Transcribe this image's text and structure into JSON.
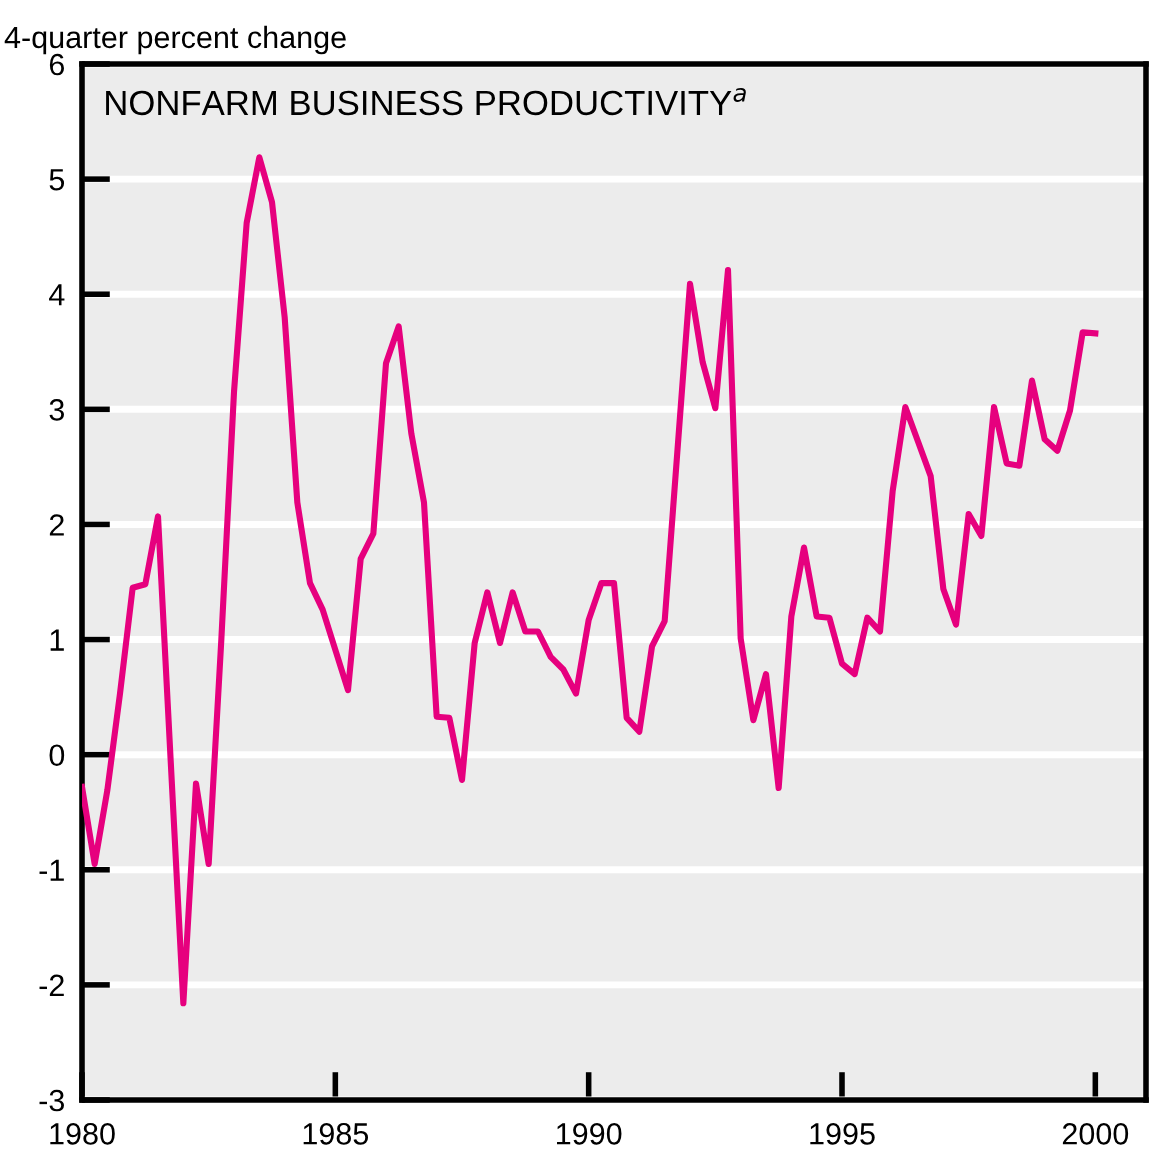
{
  "chart_data": {
    "type": "line",
    "title": "NONFARM BUSINESS PRODUCTIVITY$^{a}$",
    "ylabel": "4-quarter percent change",
    "x": [
      1980,
      1980.25,
      1980.5,
      1980.75,
      1981,
      1981.25,
      1981.5,
      1981.75,
      1982,
      1982.25,
      1982.5,
      1982.75,
      1983,
      1983.25,
      1983.5,
      1983.75,
      1984,
      1984.25,
      1984.5,
      1984.75,
      1985,
      1985.25,
      1985.5,
      1985.75,
      1986,
      1986.25,
      1986.5,
      1986.75,
      1987,
      1987.25,
      1987.5,
      1987.75,
      1988,
      1988.25,
      1988.5,
      1988.75,
      1989,
      1989.25,
      1989.5,
      1989.75,
      1990,
      1990.25,
      1990.5,
      1990.75,
      1991,
      1991.25,
      1991.5,
      1991.75,
      1992,
      1992.25,
      1992.5,
      1992.75,
      1993,
      1993.25,
      1993.5,
      1993.75,
      1994,
      1994.25,
      1994.5,
      1994.75,
      1995,
      1995.25,
      1995.5,
      1995.75,
      1996,
      1996.25,
      1996.5,
      1996.75,
      1997,
      1997.25,
      1997.5,
      1997.75,
      1998,
      1998.25,
      1998.5,
      1998.75,
      1999,
      1999.25,
      1999.5,
      1999.75,
      2000
    ],
    "series": [
      {
        "color": "#e6007e",
        "values": [
          -0.28,
          -0.95,
          -0.31,
          0.53,
          1.45,
          1.48,
          2.07,
          -0.05,
          -2.16,
          -0.25,
          -0.95,
          1.0,
          3.15,
          4.62,
          5.19,
          4.8,
          3.8,
          2.19,
          1.49,
          1.26,
          0.91,
          0.56,
          1.7,
          1.92,
          3.4,
          3.72,
          2.79,
          2.19,
          0.33,
          0.32,
          -0.22,
          0.97,
          1.41,
          0.97,
          1.41,
          1.07,
          1.07,
          0.85,
          0.74,
          0.53,
          1.17,
          1.49,
          1.49,
          0.32,
          0.2,
          0.94,
          1.16,
          2.63,
          4.09,
          3.41,
          3.01,
          4.21,
          1.01,
          0.3,
          0.7,
          -0.29,
          1.2,
          1.8,
          1.2,
          1.19,
          0.79,
          0.7,
          1.19,
          1.07,
          2.29,
          3.02,
          2.72,
          2.42,
          1.44,
          1.13,
          2.09,
          1.9,
          3.02,
          2.53,
          2.51,
          3.25,
          2.74,
          2.64,
          2.99,
          3.67,
          3.66
        ]
      }
    ],
    "xlim": [
      1980,
      2001
    ],
    "xticks": [
      1980,
      1985,
      1990,
      1995,
      2000
    ],
    "ylim": [
      -3,
      6
    ],
    "yticks": [
      -3,
      -2,
      -1,
      0,
      1,
      2,
      3,
      4,
      5,
      6
    ],
    "grid": "y",
    "line_style": "solid",
    "marker": "none"
  }
}
